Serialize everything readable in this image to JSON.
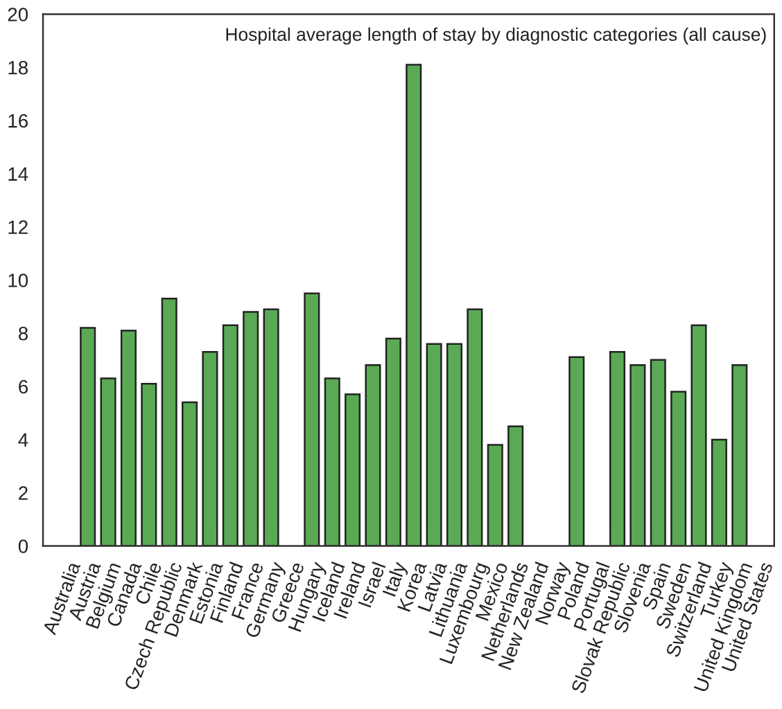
{
  "chart_data": {
    "type": "bar",
    "title": "Hospital average length of stay by diagnostic categories (all cause)",
    "categories": [
      "Australia",
      "Austria",
      "Belgium",
      "Canada",
      "Chile",
      "Czech Republic",
      "Denmark",
      "Estonia",
      "Finland",
      "France",
      "Germany",
      "Greece",
      "Hungary",
      "Iceland",
      "Ireland",
      "Israel",
      "Italy",
      "Korea",
      "Latvia",
      "Lithuania",
      "Luxembourg",
      "Mexico",
      "Netherlands",
      "New Zealand",
      "Norway",
      "Poland",
      "Portugal",
      "Slovak Republic",
      "Slovenia",
      "Spain",
      "Sweden",
      "Switzerland",
      "Turkey",
      "United Kingdom",
      "United States"
    ],
    "values": [
      null,
      8.2,
      6.3,
      8.1,
      6.1,
      9.3,
      5.4,
      7.3,
      8.3,
      8.8,
      8.9,
      null,
      9.5,
      6.3,
      5.7,
      6.8,
      7.8,
      18.1,
      7.6,
      7.6,
      8.9,
      3.8,
      4.5,
      null,
      null,
      7.1,
      null,
      7.3,
      6.8,
      7.0,
      5.8,
      8.3,
      4.0,
      6.8,
      null
    ],
    "color": "#5aaa55",
    "ylim": [
      0,
      20
    ],
    "yticks": [
      0,
      2,
      4,
      6,
      8,
      10,
      12,
      14,
      16,
      18,
      20
    ],
    "grid": false
  }
}
